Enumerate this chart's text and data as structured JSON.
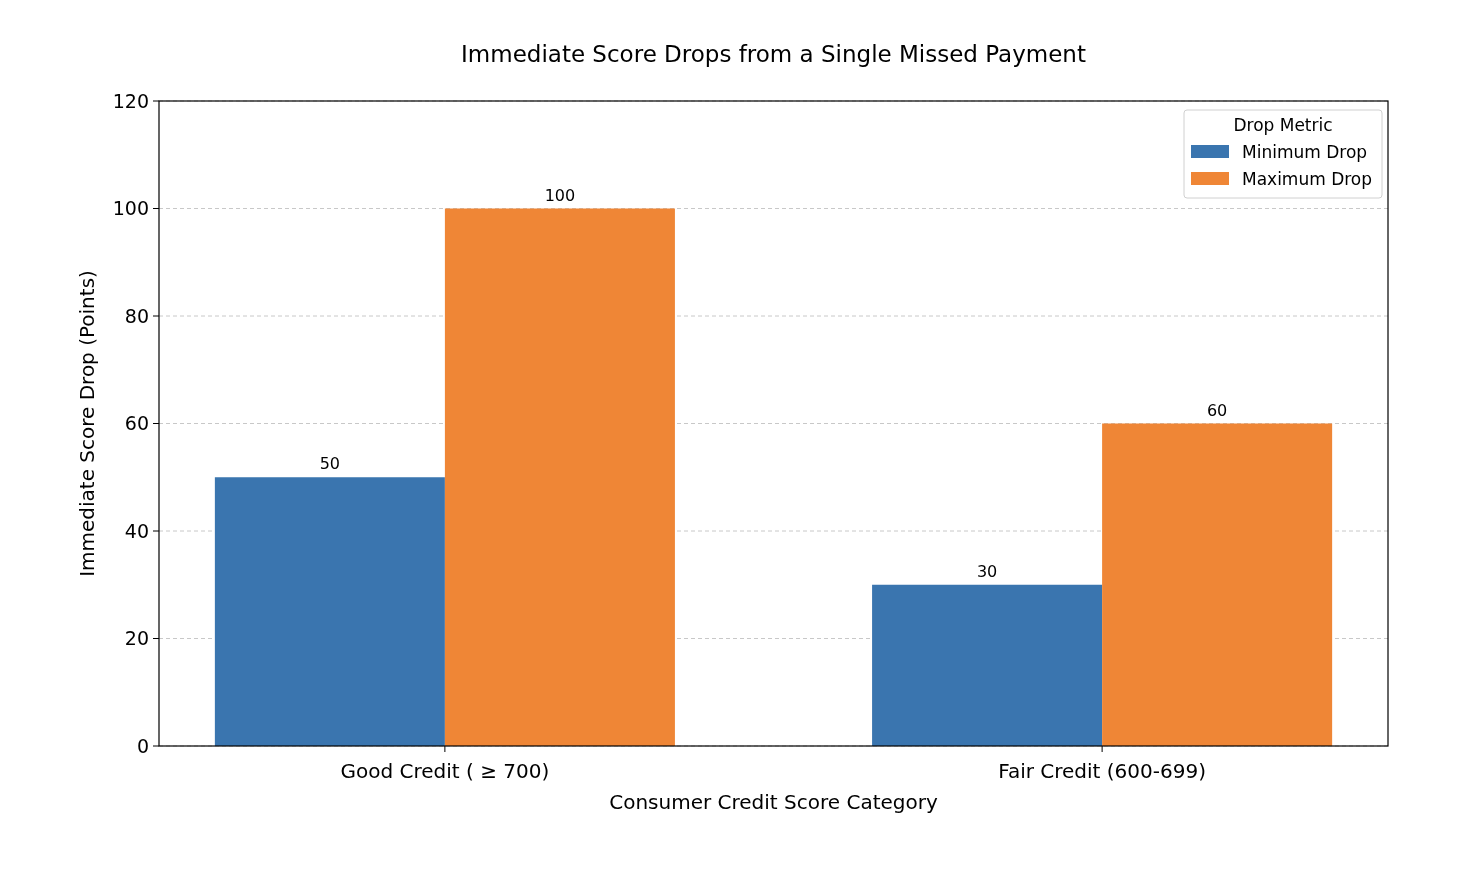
{
  "chart_data": {
    "type": "bar",
    "title": "Immediate Score Drops from a Single Missed Payment",
    "xlabel": "Consumer Credit Score Category",
    "ylabel": "Immediate Score Drop (Points)",
    "legend_title": "Drop Metric",
    "categories": [
      "Good Credit ( ≥ 700)",
      "Fair Credit (600-699)"
    ],
    "series": [
      {
        "name": "Minimum Drop",
        "color": "#3a75af",
        "values": [
          50,
          30
        ]
      },
      {
        "name": "Maximum Drop",
        "color": "#ef8636",
        "values": [
          100,
          60
        ]
      }
    ],
    "ylim": [
      0,
      120
    ],
    "yticks": [
      0,
      20,
      40,
      60,
      80,
      100,
      120
    ],
    "grid": "y",
    "legend": "top right",
    "data_labels": true
  }
}
